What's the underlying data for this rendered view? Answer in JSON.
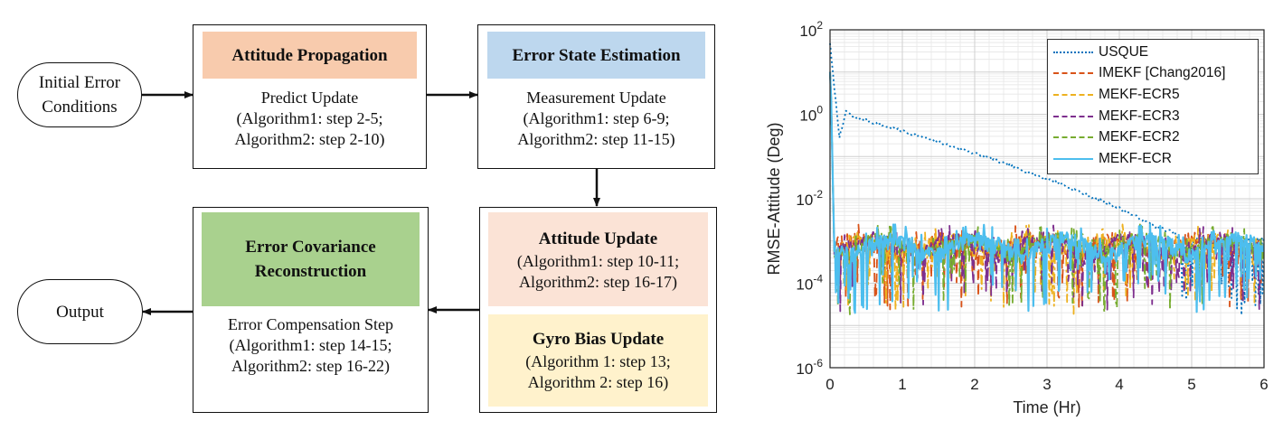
{
  "colors": {
    "orange_fill": "#f8cbad",
    "blue_fill": "#bdd7ee",
    "peach_fill": "#fbe3d6",
    "green_fill": "#a9d18e",
    "yellow_fill": "#fff2cc"
  },
  "diagram": {
    "start": {
      "line1": "Initial Error",
      "line2": "Conditions"
    },
    "end": {
      "label": "Output"
    },
    "propagation": {
      "title": "Attitude Propagation",
      "line1": "Predict Update",
      "line2": "(Algorithm1: step 2-5;",
      "line3": "Algorithm2: step 2-10)"
    },
    "estimation": {
      "title": "Error State Estimation",
      "line1": "Measurement Update",
      "line2": "(Algorithm1: step 6-9;",
      "line3": "Algorithm2: step 11-15)"
    },
    "attitude_update": {
      "title": "Attitude Update",
      "line1": "(Algorithm1: step 10-11;",
      "line2": "Algorithm2: step 16-17)"
    },
    "gyro_update": {
      "title": "Gyro Bias Update",
      "line1": "(Algorithm 1: step 13;",
      "line2": "Algorithm 2: step 16)"
    },
    "reconstruction": {
      "title1": "Error Covariance",
      "title2": "Reconstruction",
      "line1": "Error Compensation Step",
      "line2": "(Algorithm1: step 14-15;",
      "line3": "Algorithm2: step 16-22)"
    }
  },
  "chart_data": {
    "type": "line",
    "xlabel": "Time (Hr)",
    "ylabel": "RMSE-Attitude (Deg)",
    "xlim": [
      0,
      6
    ],
    "ylim": [
      1e-06,
      100
    ],
    "yscale": "log",
    "grid": true,
    "x_ticks": [
      "0",
      "1",
      "2",
      "3",
      "4",
      "5",
      "6"
    ],
    "y_ticks": [
      {
        "base": "10",
        "exp": "-6"
      },
      {
        "base": "10",
        "exp": "-4"
      },
      {
        "base": "10",
        "exp": "-2"
      },
      {
        "base": "10",
        "exp": "0"
      },
      {
        "base": "10",
        "exp": "2"
      }
    ],
    "legend_position": "top-right",
    "series": [
      {
        "name": "USQUE",
        "color": "#0072bd",
        "dash": "dotted",
        "peak": 50,
        "approx_points": [
          [
            0,
            50
          ],
          [
            0.1,
            0.3
          ],
          [
            0.2,
            1.0
          ],
          [
            1,
            0.4
          ],
          [
            2,
            0.12
          ],
          [
            3,
            0.03
          ],
          [
            4,
            0.006
          ],
          [
            4.5,
            0.002
          ],
          [
            5,
            0.0008
          ],
          [
            6,
            0.0008
          ]
        ]
      },
      {
        "name": "IMEKF [Chang2016]",
        "color": "#d95319",
        "dash": "dashed",
        "peak": 10,
        "approx_points": [
          [
            0,
            10
          ],
          [
            0.1,
            0.002
          ],
          [
            1,
            0.0008
          ],
          [
            2,
            0.0008
          ],
          [
            3,
            0.0008
          ],
          [
            4,
            0.0008
          ],
          [
            5,
            0.0008
          ],
          [
            6,
            0.0008
          ]
        ]
      },
      {
        "name": "MEKF-ECR5",
        "color": "#edb120",
        "dash": "dashdot",
        "peak": 10,
        "approx_points": [
          [
            0,
            10
          ],
          [
            0.1,
            0.002
          ],
          [
            1,
            0.0008
          ],
          [
            2,
            0.0008
          ],
          [
            3,
            0.0008
          ],
          [
            4,
            0.0008
          ],
          [
            5,
            0.0008
          ],
          [
            6,
            0.0008
          ]
        ]
      },
      {
        "name": "MEKF-ECR3",
        "color": "#7e2f8e",
        "dash": "dashed",
        "peak": 10,
        "approx_points": [
          [
            0,
            10
          ],
          [
            0.1,
            0.002
          ],
          [
            1,
            0.0008
          ],
          [
            2,
            0.0008
          ],
          [
            3,
            0.0008
          ],
          [
            4,
            0.0008
          ],
          [
            5,
            0.0008
          ],
          [
            6,
            0.0008
          ]
        ]
      },
      {
        "name": "MEKF-ECR2",
        "color": "#77ac30",
        "dash": "dashdot",
        "peak": 10,
        "approx_points": [
          [
            0,
            10
          ],
          [
            0.1,
            0.002
          ],
          [
            1,
            0.0008
          ],
          [
            2,
            0.0008
          ],
          [
            3,
            0.0008
          ],
          [
            4,
            0.0008
          ],
          [
            5,
            0.0008
          ],
          [
            6,
            0.0008
          ]
        ]
      },
      {
        "name": "MEKF-ECR",
        "color": "#4dbeee",
        "dash": "solid",
        "peak": 10,
        "approx_points": [
          [
            0,
            10
          ],
          [
            0.1,
            0.002
          ],
          [
            1,
            0.0008
          ],
          [
            2,
            0.0008
          ],
          [
            3,
            0.0008
          ],
          [
            4,
            0.0008
          ],
          [
            5,
            0.0008
          ],
          [
            6,
            0.0008
          ]
        ]
      }
    ]
  }
}
